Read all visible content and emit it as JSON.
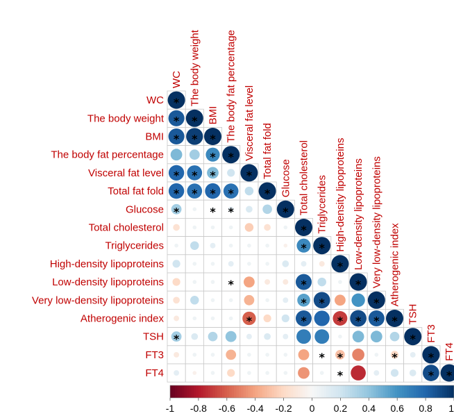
{
  "chart_data": {
    "type": "heatmap",
    "subtype": "correlation-matrix-circles-lower-triangle",
    "title": "",
    "variables": [
      "WC",
      "The body weight",
      "BMI",
      "The body fat percentage",
      "Visceral fat level",
      "Total fat fold",
      "Glucose",
      "Total cholesterol",
      "Triglycerides",
      "High-density lipoproteins",
      "Low-density lipoproteins",
      "Very low-density lipoproteins",
      "Atherogenic index",
      "TSH",
      "FT3",
      "FT4"
    ],
    "matrix": [
      [
        1
      ],
      [
        0.85,
        1
      ],
      [
        0.85,
        0.95,
        1
      ],
      [
        0.45,
        0.35,
        0.65,
        1
      ],
      [
        0.8,
        0.75,
        0.45,
        0.2,
        1
      ],
      [
        0.8,
        0.75,
        0.8,
        0.75,
        0.25,
        1
      ],
      [
        0.35,
        0.05,
        0.05,
        0.1,
        0.15,
        0.3,
        1
      ],
      [
        -0.15,
        0.05,
        0.05,
        0.05,
        -0.25,
        -0.15,
        0.05,
        1
      ],
      [
        0.05,
        0.25,
        0.1,
        0.05,
        0.05,
        0.05,
        -0.05,
        0.65,
        1
      ],
      [
        0.2,
        0.05,
        0.05,
        0.1,
        0.05,
        0.05,
        0.15,
        0.1,
        -0.1,
        1
      ],
      [
        -0.2,
        0.05,
        0.05,
        0.0,
        -0.4,
        -0.1,
        -0.1,
        0.85,
        0.25,
        0.05,
        1
      ],
      [
        -0.15,
        0.25,
        0.05,
        0.05,
        -0.35,
        0.05,
        0.1,
        0.55,
        0.9,
        -0.4,
        0.6,
        1
      ],
      [
        -0.1,
        0.05,
        0.05,
        0.05,
        -0.6,
        -0.2,
        0.2,
        0.85,
        0.8,
        -0.7,
        0.9,
        0.85,
        1
      ],
      [
        0.35,
        0.15,
        0.3,
        0.4,
        0.1,
        0.15,
        0.1,
        0.7,
        0.7,
        0.05,
        0.45,
        0.45,
        0.3,
        1
      ],
      [
        -0.1,
        0.05,
        0.05,
        -0.35,
        0.05,
        0.05,
        0.05,
        -0.4,
        0.05,
        -0.3,
        -0.5,
        0.05,
        -0.2,
        0.1,
        1
      ],
      [
        0.1,
        -0.05,
        0.05,
        -0.2,
        0.05,
        0.05,
        0.05,
        -0.45,
        0.05,
        0.05,
        -0.75,
        0.1,
        0.2,
        0.15,
        0.9,
        1
      ]
    ],
    "significant": [
      [
        0,
        0
      ],
      [
        1,
        0
      ],
      [
        1,
        1
      ],
      [
        2,
        0
      ],
      [
        2,
        1
      ],
      [
        2,
        2
      ],
      [
        3,
        2
      ],
      [
        3,
        3
      ],
      [
        4,
        0
      ],
      [
        4,
        1
      ],
      [
        4,
        2
      ],
      [
        4,
        4
      ],
      [
        5,
        0
      ],
      [
        5,
        1
      ],
      [
        5,
        2
      ],
      [
        5,
        3
      ],
      [
        5,
        5
      ],
      [
        6,
        0
      ],
      [
        6,
        2
      ],
      [
        6,
        3
      ],
      [
        6,
        6
      ],
      [
        7,
        7
      ],
      [
        8,
        7
      ],
      [
        8,
        8
      ],
      [
        9,
        9
      ],
      [
        10,
        3
      ],
      [
        10,
        7
      ],
      [
        10,
        10
      ],
      [
        11,
        7
      ],
      [
        11,
        8
      ],
      [
        11,
        11
      ],
      [
        12,
        4
      ],
      [
        12,
        7
      ],
      [
        12,
        9
      ],
      [
        12,
        10
      ],
      [
        12,
        11
      ],
      [
        12,
        12
      ],
      [
        13,
        0
      ],
      [
        13,
        13
      ],
      [
        14,
        8
      ],
      [
        14,
        9
      ],
      [
        14,
        12
      ],
      [
        14,
        14
      ],
      [
        15,
        9
      ],
      [
        15,
        14
      ],
      [
        15,
        15
      ]
    ],
    "significance_marker": "*",
    "colorbar": {
      "ticks": [
        "-1",
        "-0.8",
        "-0.6",
        "-0.4",
        "-0.2",
        "0",
        "0.2",
        "0.4",
        "0.6",
        "0.8",
        "1"
      ],
      "range": [
        -1,
        1
      ],
      "colors": [
        "#67001f",
        "#b2182b",
        "#d6604d",
        "#f4a582",
        "#fddbc7",
        "#f7f7f7",
        "#d1e5f0",
        "#92c5de",
        "#4393c3",
        "#2166ac",
        "#053061"
      ]
    },
    "label_color": "#c00000",
    "grid": true
  }
}
